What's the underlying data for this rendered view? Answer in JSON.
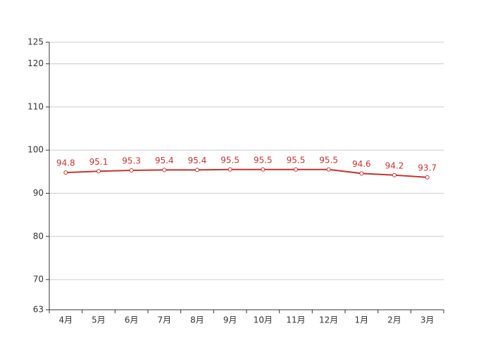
{
  "chart_data": {
    "type": "line",
    "categories": [
      "4月",
      "5月",
      "6月",
      "7月",
      "8月",
      "9月",
      "10月",
      "11月",
      "12月",
      "1月",
      "2月",
      "3月"
    ],
    "values": [
      94.8,
      95.1,
      95.3,
      95.4,
      95.4,
      95.5,
      95.5,
      95.5,
      95.5,
      94.6,
      94.2,
      93.7
    ],
    "color": "#c23531",
    "ylim": [
      63,
      125
    ],
    "yticks": [
      63,
      70,
      80,
      90,
      100,
      110,
      120,
      125
    ],
    "grid": true
  }
}
